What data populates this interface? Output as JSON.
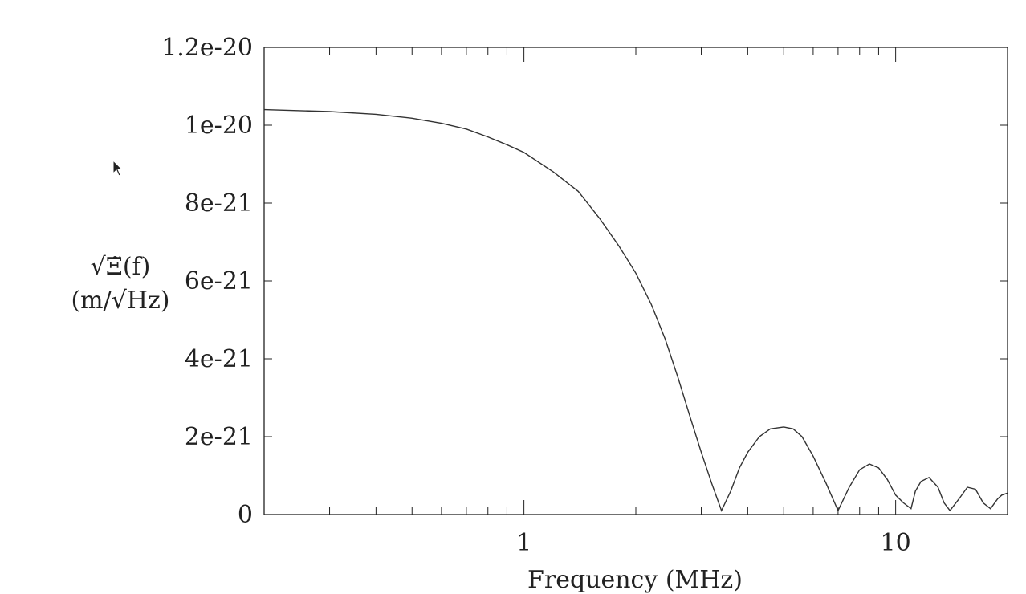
{
  "chart_data": {
    "type": "line",
    "xlabel": "Frequency (MHz)",
    "ylabel_line1": "√Ξ̃(f)",
    "ylabel_line2": "(m/√Hz)",
    "x_scale": "log",
    "xlim": [
      0.2,
      20
    ],
    "ylim": [
      0,
      1.2e-20
    ],
    "x_ticks": [
      {
        "value": 1,
        "label": "1"
      },
      {
        "value": 10,
        "label": "10"
      }
    ],
    "y_ticks": [
      {
        "value": 0,
        "label": "0"
      },
      {
        "value": 2e-21,
        "label": "2e-21"
      },
      {
        "value": 4e-21,
        "label": "4e-21"
      },
      {
        "value": 6e-21,
        "label": "6e-21"
      },
      {
        "value": 8e-21,
        "label": "8e-21"
      },
      {
        "value": 1e-20,
        "label": "1e-20"
      },
      {
        "value": 1.2e-20,
        "label": "1.2e-20"
      }
    ],
    "grid": false,
    "series": [
      {
        "x": [
          0.2,
          0.3,
          0.4,
          0.5,
          0.6,
          0.7,
          0.8,
          0.9,
          1.0,
          1.2,
          1.4,
          1.6,
          1.8,
          2.0,
          2.2,
          2.4,
          2.6,
          2.8,
          3.0,
          3.2,
          3.4,
          3.6,
          3.8,
          4.0,
          4.3,
          4.6,
          5.0,
          5.3,
          5.6,
          6.0,
          6.5,
          7.0,
          7.5,
          8.0,
          8.5,
          9.0,
          9.5,
          10.0,
          10.5,
          11.0,
          11.3,
          11.7,
          12.3,
          13.0,
          13.5,
          14.0,
          14.8,
          15.6,
          16.4,
          17.2,
          18.0,
          18.8,
          19.3,
          20.0
        ],
        "y": [
          1.04e-20,
          1.035e-20,
          1.028e-20,
          1.018e-20,
          1.005e-20,
          9.9e-21,
          9.7e-21,
          9.5e-21,
          9.3e-21,
          8.8e-21,
          8.3e-21,
          7.6e-21,
          6.9e-21,
          6.2e-21,
          5.4e-21,
          4.5e-21,
          3.5e-21,
          2.5e-21,
          1.6e-21,
          8e-22,
          1e-22,
          6e-22,
          1.2e-21,
          1.6e-21,
          2e-21,
          2.2e-21,
          2.25e-21,
          2.2e-21,
          2e-21,
          1.5e-21,
          8e-22,
          1e-22,
          7e-22,
          1.15e-21,
          1.3e-21,
          1.2e-21,
          9e-22,
          5e-22,
          3e-22,
          1.5e-22,
          6e-22,
          8.5e-22,
          9.5e-22,
          7e-22,
          3e-22,
          1e-22,
          4e-22,
          7e-22,
          6.5e-22,
          3e-22,
          1.5e-22,
          4e-22,
          5e-22,
          5.5e-22
        ]
      }
    ]
  }
}
